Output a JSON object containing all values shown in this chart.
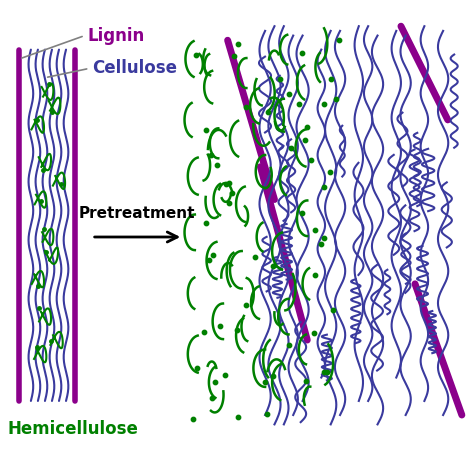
{
  "lignin_color": "#8B008B",
  "cellulose_color": "#3A3A9E",
  "hemicellulose_color": "#008000",
  "bg_color": "#FFFFFF",
  "label_lignin": "Lignin",
  "label_cellulose": "Cellulose",
  "label_hemicellulose": "Hemicellulose",
  "label_pretreatment": "Pretreatment",
  "figsize": [
    4.74,
    4.74
  ],
  "dpi": 100
}
